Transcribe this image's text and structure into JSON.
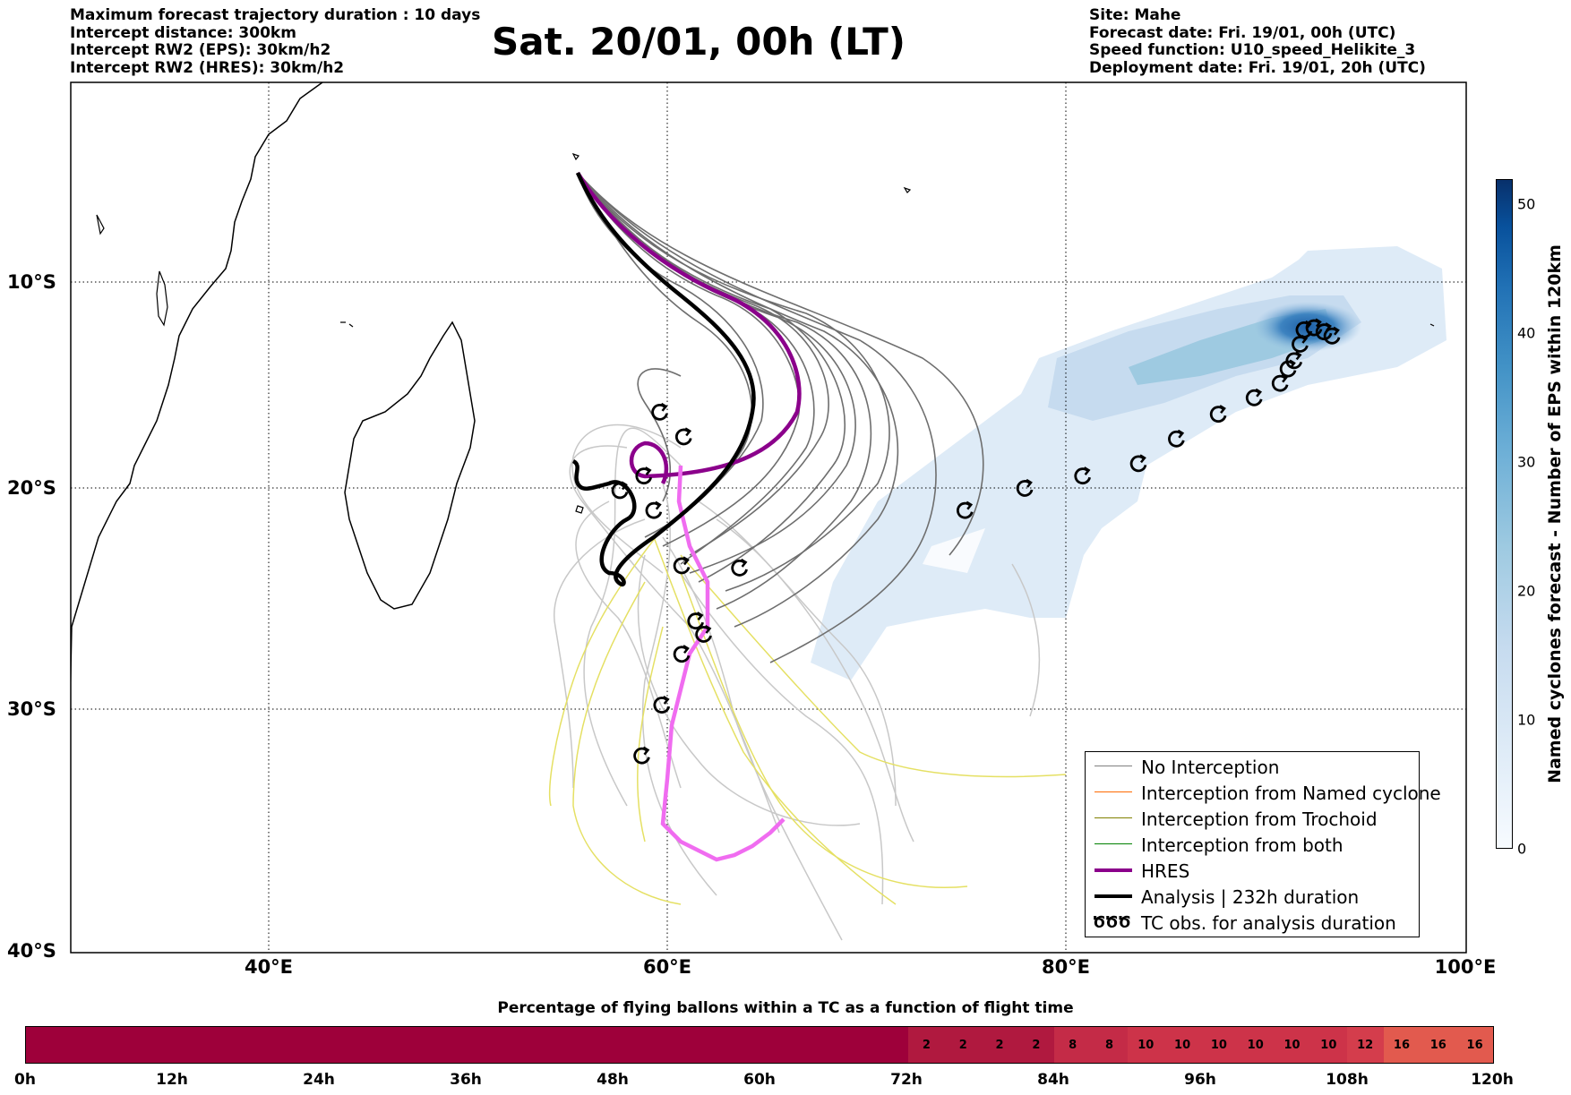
{
  "header_left": [
    "Maximum forecast trajectory duration : 10 days",
    "Intercept distance: 300km",
    "Intercept RW2 (EPS):  30km/h2",
    "Intercept RW2 (HRES): 30km/h2"
  ],
  "title": "Sat. 20/01, 00h (LT)",
  "header_right": [
    "Site: Mahe",
    "Forecast date: Fri. 19/01, 00h (UTC)",
    "Speed function: U10_speed_Helikite_3",
    "Deployment date: Fri. 19/01, 20h (UTC)"
  ],
  "map": {
    "lat_labels": [
      "10°S",
      "20°S",
      "30°S",
      "40°S"
    ],
    "lon_labels": [
      "40°E",
      "60°E",
      "80°E",
      "100°E"
    ],
    "lon_range": [
      30,
      100
    ],
    "lat_range": [
      -40,
      0
    ],
    "grid": "dotted"
  },
  "legend": {
    "items": [
      {
        "label": "No Interception",
        "color": "#808080",
        "style": "thin"
      },
      {
        "label": "Interception from Named cyclone",
        "color": "#ff6a00",
        "style": "thin"
      },
      {
        "label": "Interception from Trochoid",
        "color": "#808000",
        "style": "thin"
      },
      {
        "label": "Interception from both",
        "color": "#008000",
        "style": "thin"
      },
      {
        "label": "HRES",
        "color": "#8b008b",
        "style": "thick"
      },
      {
        "label": "Analysis | 232h duration",
        "color": "#000000",
        "style": "thick"
      },
      {
        "label": "TC obs. for analysis duration",
        "color": "#000000",
        "style": "symbol",
        "symbol": "ԾԾԾ"
      }
    ]
  },
  "colorbar_vertical": {
    "label": "Named cyclones forecast - Number of EPS within 120km",
    "ticks": [
      "0",
      "10",
      "20",
      "30",
      "40",
      "50"
    ],
    "range": [
      0,
      52
    ]
  },
  "colorbar_horizontal": {
    "title": "Percentage of flying ballons within a TC as a function of flight time",
    "tick_labels": [
      "0h",
      "12h",
      "24h",
      "36h",
      "48h",
      "60h",
      "72h",
      "84h",
      "96h",
      "108h",
      "120h"
    ],
    "segment_values": [
      "2",
      "2",
      "2",
      "2",
      "8",
      "8",
      "10",
      "10",
      "10",
      "10",
      "10",
      "10",
      "12",
      "16",
      "16",
      "16"
    ],
    "segment_colors": [
      "#b0193f",
      "#b0193f",
      "#b0193f",
      "#b0193f",
      "#c42b47",
      "#c42b47",
      "#cd3349",
      "#cd3349",
      "#cd3349",
      "#cd3349",
      "#cd3349",
      "#cd3349",
      "#d43d4c",
      "#e25a4e",
      "#e25a4e",
      "#e25a4e"
    ],
    "base_color": "#9e003a"
  },
  "tc_observations": [
    {
      "lon": 74.9,
      "lat": -21.0
    },
    {
      "lon": 77.9,
      "lat": -20.0
    },
    {
      "lon": 80.8,
      "lat": -19.4
    },
    {
      "lon": 83.6,
      "lat": -18.8
    },
    {
      "lon": 85.5,
      "lat": -17.6
    },
    {
      "lon": 87.6,
      "lat": -16.4
    },
    {
      "lon": 89.4,
      "lat": -15.6
    },
    {
      "lon": 90.7,
      "lat": -14.9
    },
    {
      "lon": 91.1,
      "lat": -14.2
    },
    {
      "lon": 91.4,
      "lat": -13.8
    },
    {
      "lon": 91.7,
      "lat": -13.0
    },
    {
      "lon": 91.9,
      "lat": -12.3
    },
    {
      "lon": 92.4,
      "lat": -12.2
    },
    {
      "lon": 92.9,
      "lat": -12.4
    },
    {
      "lon": 93.3,
      "lat": -12.6
    },
    {
      "lon": 59.6,
      "lat": -16.3
    },
    {
      "lon": 60.8,
      "lat": -17.5
    },
    {
      "lon": 58.8,
      "lat": -19.4
    },
    {
      "lon": 57.6,
      "lat": -20.1
    },
    {
      "lon": 59.3,
      "lat": -21.0
    },
    {
      "lon": 60.7,
      "lat": -23.5
    },
    {
      "lon": 63.6,
      "lat": -23.6
    },
    {
      "lon": 61.4,
      "lat": -26.0
    },
    {
      "lon": 61.8,
      "lat": -26.6
    },
    {
      "lon": 60.7,
      "lat": -27.5
    },
    {
      "lon": 59.7,
      "lat": -29.8
    },
    {
      "lon": 58.7,
      "lat": -31.9
    }
  ]
}
